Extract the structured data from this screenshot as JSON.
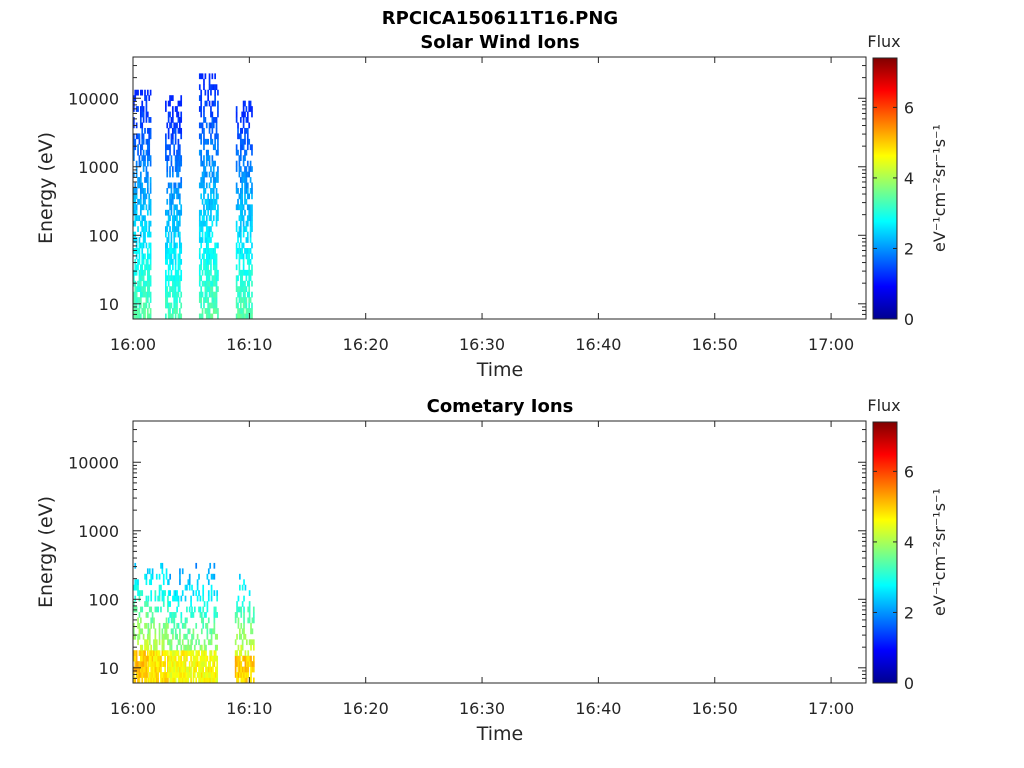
{
  "figure_title": "RPCICA150611T16.PNG",
  "colormap": [
    "#00008f",
    "#0000ff",
    "#0080ff",
    "#00ffff",
    "#80ff80",
    "#ffff00",
    "#ff8000",
    "#ff0000",
    "#800000"
  ],
  "chart_data": [
    {
      "type": "heatmap",
      "title": "Solar Wind Ions",
      "xlabel": "Time",
      "ylabel": "Energy (eV)",
      "yscale": "log",
      "xticks": [
        "16:00",
        "16:10",
        "16:20",
        "16:30",
        "16:40",
        "16:50",
        "17:00"
      ],
      "yticks": [
        "10",
        "100",
        "1000",
        "10000"
      ],
      "xlim": [
        "16:00",
        "17:03"
      ],
      "ylim": [
        6,
        40000
      ],
      "colorbar": {
        "label": "Flux",
        "units": "eV⁻¹cm⁻²sr⁻¹s⁻¹",
        "ticks": [
          "0",
          "2",
          "4",
          "6"
        ],
        "range": [
          0,
          7.4
        ]
      },
      "bursts": [
        {
          "start": "16:00:00",
          "end": "16:01:30",
          "emax": 12000,
          "peak": 3.4
        },
        {
          "start": "16:02:45",
          "end": "16:04:10",
          "emax": 10000,
          "peak": 3.3
        },
        {
          "start": "16:05:40",
          "end": "16:07:15",
          "emax": 20000,
          "peak": 3.4
        },
        {
          "start": "16:08:50",
          "end": "16:10:15",
          "emax": 9000,
          "peak": 3.4
        }
      ]
    },
    {
      "type": "heatmap",
      "title": "Cometary Ions",
      "xlabel": "Time",
      "ylabel": "Energy (eV)",
      "yscale": "log",
      "xticks": [
        "16:00",
        "16:10",
        "16:20",
        "16:30",
        "16:40",
        "16:50",
        "17:00"
      ],
      "yticks": [
        "10",
        "100",
        "1000",
        "10000"
      ],
      "xlim": [
        "16:00",
        "17:03"
      ],
      "ylim": [
        6,
        40000
      ],
      "colorbar": {
        "label": "Flux",
        "units": "eV⁻¹cm⁻²sr⁻¹s⁻¹",
        "ticks": [
          "0",
          "2",
          "4",
          "6"
        ],
        "range": [
          0,
          7.4
        ]
      },
      "bursts": [
        {
          "start": "16:00:00",
          "end": "16:01:15",
          "emax": 300,
          "peak": 5.0
        },
        {
          "start": "16:01:15",
          "end": "16:03:00",
          "emax": 400,
          "peak": 4.8
        },
        {
          "start": "16:03:00",
          "end": "16:05:00",
          "emax": 250,
          "peak": 4.6
        },
        {
          "start": "16:05:00",
          "end": "16:07:10",
          "emax": 300,
          "peak": 4.6
        },
        {
          "start": "16:08:45",
          "end": "16:10:20",
          "emax": 200,
          "peak": 5.0
        }
      ]
    }
  ]
}
